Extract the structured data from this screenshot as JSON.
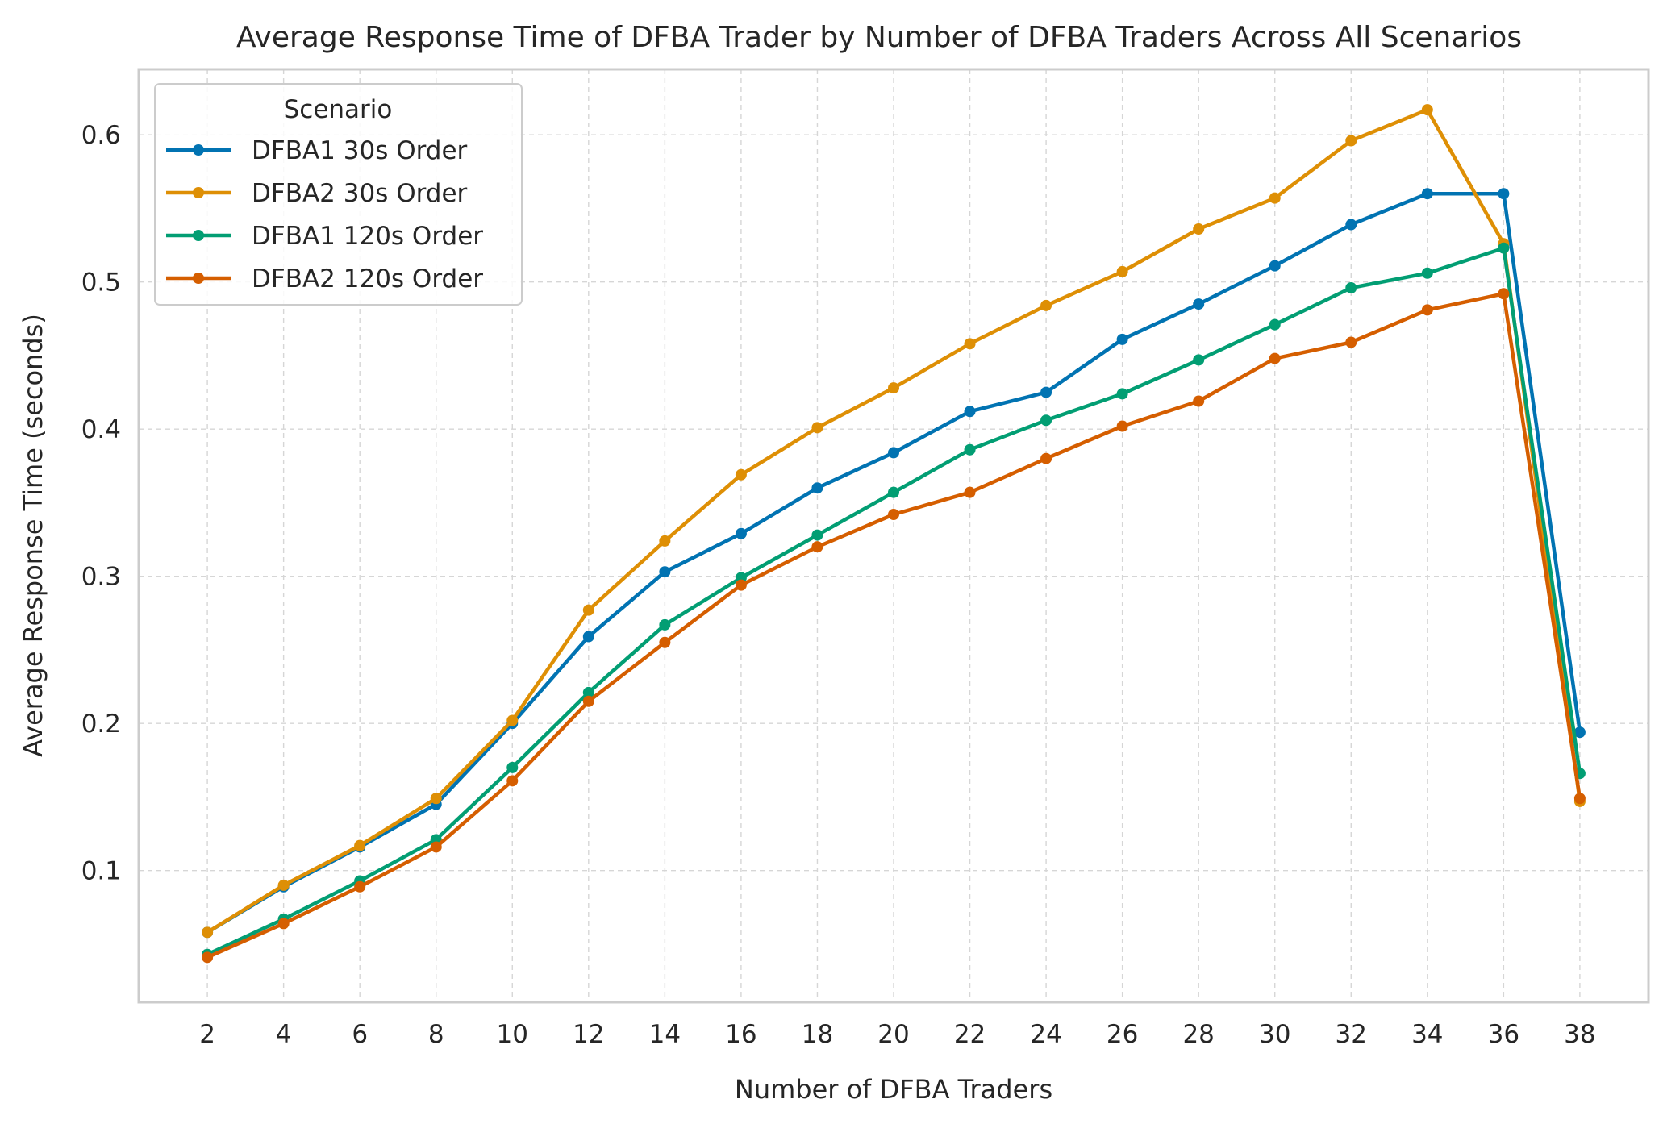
{
  "chart_data": {
    "type": "line",
    "title": "Average Response Time of DFBA Trader by Number of DFBA Traders Across All Scenarios",
    "xlabel": "Number of DFBA Traders",
    "ylabel": "Average Response Time (seconds)",
    "x": [
      2,
      4,
      6,
      8,
      10,
      12,
      14,
      16,
      18,
      20,
      22,
      24,
      26,
      28,
      30,
      32,
      34,
      36,
      38
    ],
    "x_ticks": [
      "2",
      "4",
      "6",
      "8",
      "10",
      "12",
      "14",
      "16",
      "18",
      "20",
      "22",
      "24",
      "26",
      "28",
      "30",
      "32",
      "34",
      "36",
      "38"
    ],
    "y_ticks": [
      "0.1",
      "0.2",
      "0.3",
      "0.4",
      "0.5",
      "0.6"
    ],
    "y_tick_values": [
      0.1,
      0.2,
      0.3,
      0.4,
      0.5,
      0.6
    ],
    "xlim": [
      0.2,
      39.8
    ],
    "ylim": [
      0.0105,
      0.6445
    ],
    "grid": true,
    "legend": {
      "title": "Scenario",
      "placement": "top-left"
    },
    "series": [
      {
        "name": "DFBA1 30s Order",
        "color": "#0173b2",
        "values": [
          0.058,
          0.089,
          0.116,
          0.145,
          0.2,
          0.259,
          0.303,
          0.329,
          0.36,
          0.384,
          0.412,
          0.425,
          0.461,
          0.485,
          0.511,
          0.539,
          0.56,
          0.56,
          0.194
        ]
      },
      {
        "name": "DFBA2 30s Order",
        "color": "#de8f05",
        "values": [
          0.058,
          0.09,
          0.117,
          0.149,
          0.202,
          0.277,
          0.324,
          0.369,
          0.401,
          0.428,
          0.458,
          0.484,
          0.507,
          0.536,
          0.557,
          0.596,
          0.617,
          0.526,
          0.147
        ]
      },
      {
        "name": "DFBA1 120s Order",
        "color": "#029e73",
        "values": [
          0.043,
          0.067,
          0.093,
          0.121,
          0.17,
          0.221,
          0.267,
          0.299,
          0.328,
          0.357,
          0.386,
          0.406,
          0.424,
          0.447,
          0.471,
          0.496,
          0.506,
          0.523,
          0.166
        ]
      },
      {
        "name": "DFBA2 120s Order",
        "color": "#d55e00",
        "values": [
          0.041,
          0.064,
          0.089,
          0.116,
          0.161,
          0.215,
          0.255,
          0.294,
          0.32,
          0.342,
          0.357,
          0.38,
          0.402,
          0.419,
          0.448,
          0.459,
          0.481,
          0.492,
          0.149
        ]
      }
    ]
  }
}
